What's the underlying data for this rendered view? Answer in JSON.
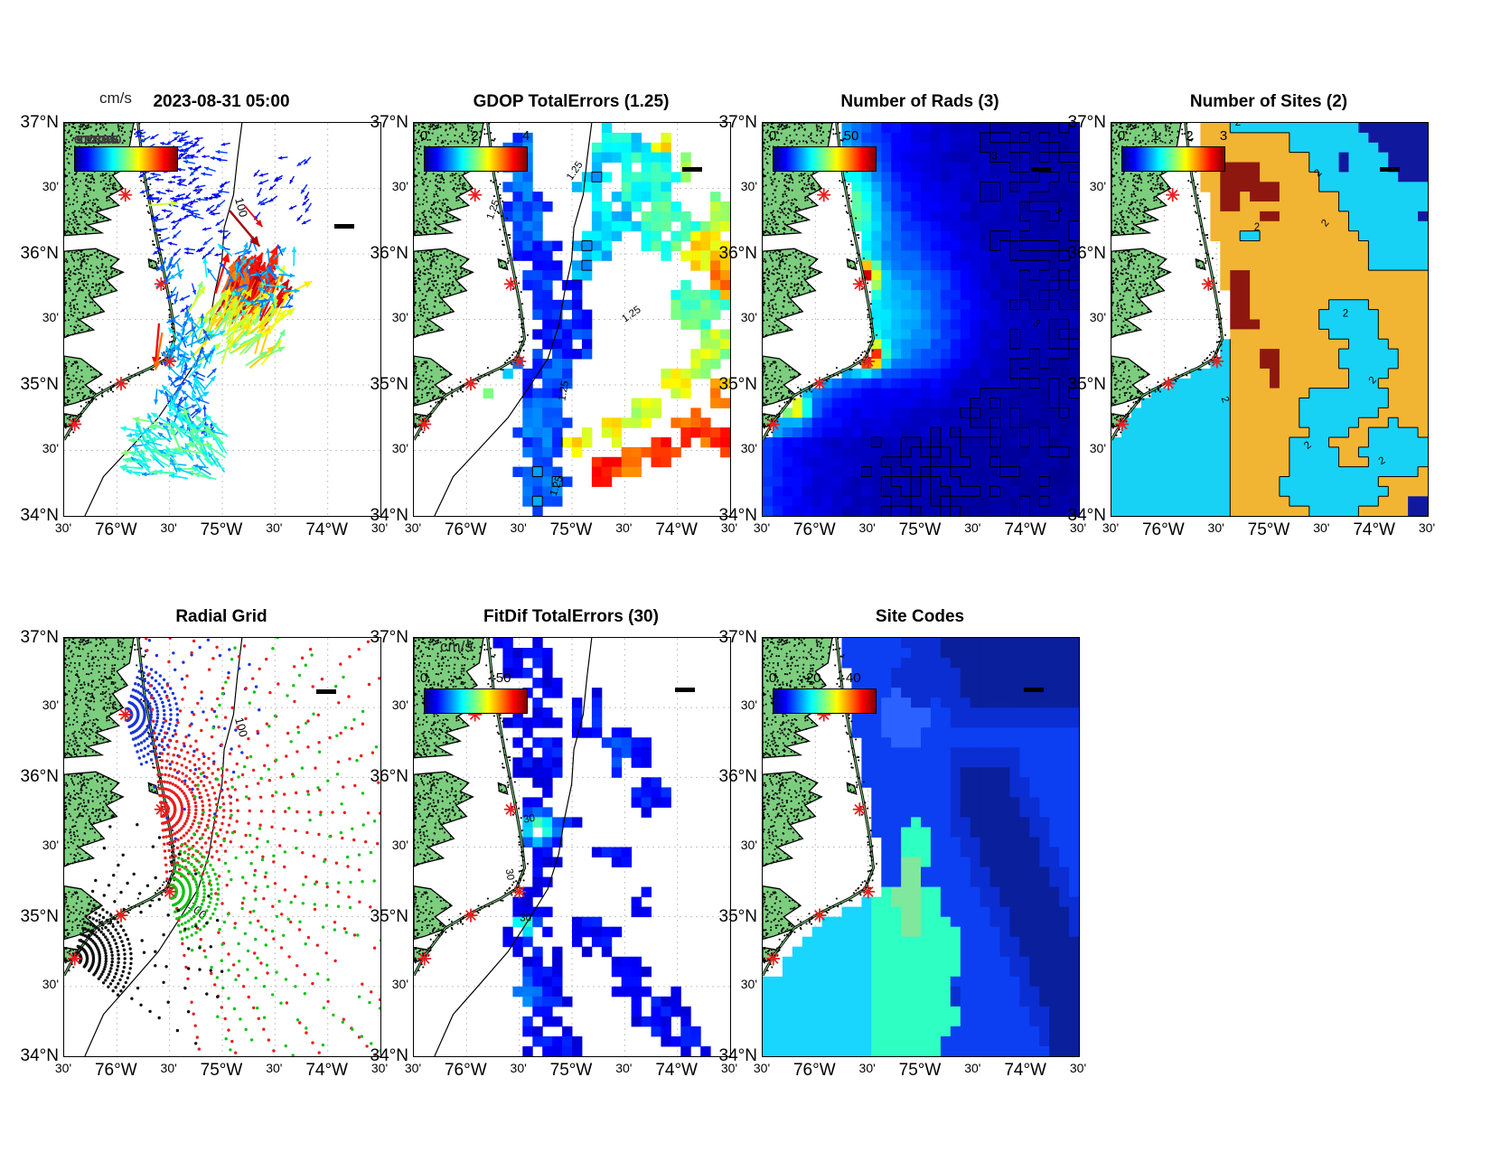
{
  "figure": {
    "background": "#FFFFFF"
  },
  "geo": {
    "lon_west": 76.5,
    "lon_east": 73.5,
    "lat_south": 34,
    "lat_north": 37,
    "x_tick_labels": [
      "30'",
      "76°W",
      "30'",
      "75°W",
      "30'",
      "74°W",
      "30'"
    ],
    "y_tick_labels": [
      "37°N",
      "30'",
      "36°N",
      "30'",
      "35°N",
      "30'",
      "34°N"
    ]
  },
  "basemap": {
    "land_color": "#7CCE7E",
    "coast_color": "#000000",
    "graticule_color": "#C4C4C4",
    "site_marker_color": "#E62020",
    "bathy_contour_label": "100",
    "sites_lon_lat": [
      [
        75.92,
        36.45
      ],
      [
        75.58,
        35.77
      ],
      [
        75.5,
        35.18
      ],
      [
        75.96,
        35.01
      ],
      [
        76.4,
        34.7
      ]
    ]
  },
  "panels": [
    {
      "title": "2023-08-31 05:00",
      "unit": "cm/s",
      "scale_speed": "50 cm/s",
      "scale_dist": "10 km",
      "colorbar": {
        "garbled_text": "0 5 10 15 20 25 30 35 40 45 50",
        "ticks": [],
        "positions": []
      }
    },
    {
      "title": "GDOP TotalErrors (1.25)",
      "scale_dist": "10 km",
      "colorbar": {
        "ticks": [
          "0",
          "2",
          "4"
        ],
        "positions": [
          0,
          0.5,
          1
        ]
      }
    },
    {
      "title": "Number of Rads (3)",
      "scale_dist": "10 km",
      "colorbar": {
        "ticks": [
          "0",
          "50"
        ],
        "positions": [
          0,
          0.77
        ]
      }
    },
    {
      "title": "Number of Sites (2)",
      "scale_dist": "10 km",
      "colorbar": {
        "ticks": [
          "0",
          "1",
          "2",
          "3"
        ],
        "positions": [
          0,
          0.333,
          0.667,
          1
        ]
      }
    },
    {
      "title": "Radial Grid",
      "scale_dist": "10 km"
    },
    {
      "title": "FitDif TotalErrors (30)",
      "unit": "cm/s",
      "scale_dist": "10 km",
      "colorbar": {
        "ticks": [
          "0",
          "50"
        ],
        "positions": [
          0,
          0.78
        ]
      }
    },
    {
      "title": "Site Codes",
      "scale_dist": "10 km",
      "colorbar": {
        "ticks": [
          "0",
          "20",
          "40"
        ],
        "positions": [
          0,
          0.4,
          0.79
        ]
      }
    }
  ],
  "chart_data": [
    {
      "id": "surface_currents",
      "type": "map-vector-field",
      "title": "2023-08-31 05:00",
      "units": "cm/s",
      "colorbar_range": [
        0,
        50
      ],
      "scale_arrow": "50 cm/s",
      "scale_bar": "10 km",
      "bathy_labels": [
        [
          74.88,
          36.42,
          75
        ]
      ],
      "clusters": [
        {
          "kind": "box",
          "lon": [
            75.88,
            74.92
          ],
          "lat": [
            36.0,
            36.95
          ],
          "n": 170,
          "speed": [
            4,
            10
          ],
          "bearing": [
            255,
            35
          ]
        },
        {
          "kind": "box",
          "lon": [
            74.65,
            74.15
          ],
          "lat": [
            36.25,
            36.8
          ],
          "n": 22,
          "speed": [
            4,
            9
          ],
          "bearing": [
            235,
            40
          ]
        },
        {
          "kind": "box",
          "lon": [
            75.62,
            75.25
          ],
          "lat": [
            35.5,
            35.98
          ],
          "n": 28,
          "speed": [
            8,
            16
          ],
          "bearing": [
            205,
            45
          ]
        },
        {
          "kind": "gauss",
          "c": [
            74.83,
            35.58
          ],
          "s": [
            0.17,
            0.13
          ],
          "n": 85,
          "speed": [
            37,
            50
          ],
          "bearing": [
            25,
            12
          ]
        },
        {
          "kind": "gauss",
          "c": [
            74.87,
            35.42
          ],
          "s": [
            0.3,
            0.22
          ],
          "n": 70,
          "speed": [
            23,
            35
          ],
          "bearing": [
            38,
            28
          ]
        },
        {
          "kind": "gauss",
          "c": [
            74.72,
            35.78
          ],
          "s": [
            0.3,
            0.2
          ],
          "n": 45,
          "speed": [
            10,
            19
          ],
          "bearing": [
            20,
            80
          ]
        },
        {
          "kind": "box",
          "lon": [
            75.52,
            75.12
          ],
          "lat": [
            34.55,
            35.45
          ],
          "n": 115,
          "speed": [
            9,
            20
          ],
          "bearing": [
            0,
            70
          ]
        },
        {
          "kind": "box",
          "lon": [
            75.78,
            74.95
          ],
          "lat": [
            34.28,
            34.72
          ],
          "n": 95,
          "speed": [
            13,
            27
          ],
          "bearing": [
            300,
            40
          ]
        },
        {
          "kind": "single",
          "c": [
            74.93,
            36.33
          ],
          "speed": 50,
          "bearing": 140
        },
        {
          "kind": "single",
          "c": [
            75.7,
            36.37
          ],
          "speed": 30,
          "bearing": 85
        },
        {
          "kind": "single",
          "c": [
            75.6,
            35.47
          ],
          "speed": 46,
          "bearing": 185
        },
        {
          "kind": "single",
          "c": [
            75.57,
            35.4
          ],
          "speed": 40,
          "bearing": 190
        },
        {
          "kind": "single",
          "c": [
            75.62,
            34.97
          ],
          "speed": 14,
          "bearing": 185
        }
      ]
    },
    {
      "id": "gdop_total_errors",
      "type": "map-heatmap",
      "title": "GDOP TotalErrors (1.25)",
      "colorbar_range": [
        0,
        4
      ],
      "color_scale_max": 4.6,
      "contour_level": 1.25,
      "contour_label": "1.25",
      "contour_label_pos": [
        [
          75.72,
          36.33,
          -70
        ],
        [
          74.95,
          36.62,
          -55
        ],
        [
          74.42,
          35.52,
          -35
        ],
        [
          75.05,
          34.95,
          -80
        ],
        [
          75.12,
          34.22,
          -70
        ]
      ],
      "blobs": [
        [
          75.5,
          36.68,
          0.2,
          0.33,
          1.0
        ],
        [
          75.42,
          36.28,
          0.2,
          0.3,
          0.95
        ],
        [
          75.32,
          35.92,
          0.24,
          0.3,
          0.85
        ],
        [
          75.12,
          35.6,
          0.3,
          0.34,
          0.72
        ],
        [
          75.05,
          35.35,
          0.28,
          0.3,
          0.78
        ],
        [
          75.22,
          35.08,
          0.26,
          0.33,
          0.9
        ],
        [
          75.3,
          34.68,
          0.26,
          0.33,
          1.0
        ],
        [
          75.28,
          34.22,
          0.3,
          0.28,
          1.1
        ],
        [
          75.6,
          35.18,
          0.1,
          0.14,
          1.35
        ],
        [
          75.84,
          34.97,
          0.08,
          0.06,
          2.3
        ],
        [
          74.6,
          36.82,
          0.28,
          0.16,
          1.7
        ],
        [
          74.32,
          36.55,
          0.33,
          0.28,
          1.85
        ],
        [
          74.1,
          36.22,
          0.28,
          0.28,
          2.05
        ],
        [
          74.6,
          36.32,
          0.24,
          0.22,
          1.6
        ],
        [
          74.78,
          36.55,
          0.18,
          0.16,
          1.5
        ],
        [
          74.12,
          36.85,
          0.13,
          0.1,
          2.9
        ],
        [
          73.95,
          36.68,
          0.1,
          0.1,
          2.6
        ],
        [
          73.7,
          36.02,
          0.26,
          0.2,
          3.0
        ],
        [
          73.57,
          35.85,
          0.18,
          0.18,
          3.4
        ],
        [
          73.62,
          36.28,
          0.18,
          0.16,
          2.5
        ],
        [
          73.82,
          35.58,
          0.28,
          0.22,
          2.1
        ],
        [
          73.62,
          35.32,
          0.22,
          0.18,
          2.5
        ],
        [
          74.78,
          36.08,
          0.18,
          0.15,
          1.5
        ],
        [
          74.9,
          35.85,
          0.13,
          0.12,
          1.35
        ],
        [
          74.68,
          34.34,
          0.2,
          0.13,
          3.8
        ],
        [
          74.44,
          34.4,
          0.18,
          0.12,
          3.5
        ],
        [
          74.14,
          34.48,
          0.2,
          0.13,
          3.9
        ],
        [
          73.85,
          34.66,
          0.18,
          0.15,
          3.7
        ],
        [
          73.6,
          34.92,
          0.16,
          0.17,
          3.4
        ],
        [
          73.55,
          34.58,
          0.13,
          0.13,
          3.9
        ],
        [
          74.9,
          34.58,
          0.16,
          0.12,
          3.0
        ],
        [
          74.62,
          34.66,
          0.18,
          0.13,
          2.9
        ],
        [
          74.3,
          34.8,
          0.18,
          0.13,
          2.7
        ],
        [
          74.0,
          35.0,
          0.16,
          0.15,
          2.8
        ],
        [
          73.76,
          35.16,
          0.13,
          0.15,
          2.6
        ]
      ]
    },
    {
      "id": "number_of_rads",
      "type": "map-heatmap",
      "title": "Number of Rads (3)",
      "colorbar_range": [
        0,
        50
      ],
      "color_scale_max": 65,
      "contour_level": 3,
      "contour_label": "3",
      "contour_label_pos": [
        [
          74.3,
          36.72,
          0
        ],
        [
          73.72,
          36.32,
          60
        ],
        [
          73.92,
          35.45,
          40
        ]
      ],
      "base": {
        "floor": 2.2,
        "coastal_amp": 17,
        "decay_deg": 0.5
      },
      "bumps": [
        [
          75.55,
          35.82,
          0.13,
          0.11,
          47
        ],
        [
          75.5,
          35.22,
          0.13,
          0.1,
          47
        ],
        [
          76.18,
          34.82,
          0.12,
          0.09,
          26
        ],
        [
          75.6,
          36.35,
          0.25,
          0.3,
          12
        ],
        [
          75.05,
          35.55,
          0.5,
          0.6,
          8
        ]
      ]
    },
    {
      "id": "number_of_sites",
      "type": "map-categorical",
      "title": "Number of Sites (2)",
      "colorbar_range": [
        0,
        3
      ],
      "contour_label": "2",
      "contour_label_pos": [
        [
          75.12,
          36.18,
          0
        ],
        [
          74.52,
          36.6,
          -45
        ],
        [
          74.28,
          35.52,
          0
        ],
        [
          74.0,
          35.02,
          -50
        ],
        [
          74.62,
          34.52,
          -40
        ],
        [
          73.92,
          34.4,
          -30
        ],
        [
          75.45,
          34.88,
          70
        ],
        [
          74.45,
          36.22,
          -50
        ],
        [
          75.3,
          36.98,
          0
        ]
      ],
      "category_colors": {
        "0": "#10189E",
        "1": "#17D2F5",
        "2": "#F2B433",
        "3": "#8E1710"
      },
      "cyan_blobs": [
        [
          74.25,
          35.5,
          0.24,
          0.18
        ],
        [
          74.05,
          35.2,
          0.26,
          0.2
        ],
        [
          74.45,
          34.8,
          0.3,
          0.2
        ],
        [
          74.1,
          34.9,
          0.2,
          0.16
        ],
        [
          73.82,
          34.5,
          0.3,
          0.22
        ],
        [
          74.6,
          34.45,
          0.26,
          0.16
        ],
        [
          74.4,
          34.2,
          0.5,
          0.18
        ],
        [
          75.15,
          36.14,
          0.09,
          0.07
        ],
        [
          75.15,
          36.97,
          0.25,
          0.08
        ]
      ],
      "red_blobs": [
        [
          75.28,
          36.58,
          0.2,
          0.14
        ],
        [
          75.05,
          36.47,
          0.12,
          0.1
        ],
        [
          75.38,
          36.42,
          0.1,
          0.07
        ],
        [
          75.0,
          36.28,
          0.07,
          0.06
        ],
        [
          75.28,
          35.82,
          0.1,
          0.1
        ],
        [
          75.32,
          35.6,
          0.12,
          0.15
        ],
        [
          75.2,
          35.46,
          0.08,
          0.08
        ],
        [
          75.0,
          35.18,
          0.07,
          0.1
        ],
        [
          74.92,
          35.04,
          0.06,
          0.06
        ],
        [
          75.47,
          36.17,
          0.05,
          0.05
        ]
      ],
      "navy_squares": [
        [
          74.3,
          36.7,
          0.05
        ],
        [
          73.58,
          36.28,
          0.06
        ],
        [
          74.72,
          36.6,
          0.04
        ]
      ]
    },
    {
      "id": "radial_grid",
      "type": "map-radial-grid",
      "title": "Radial Grid",
      "bathy_labels": [
        [
          74.88,
          36.42,
          75
        ],
        [
          75.33,
          35.07,
          40
        ]
      ],
      "radial_sites": [
        {
          "color": "#1834DC",
          "c": [
            75.92,
            36.45
          ],
          "sector": [
            18,
            162
          ],
          "near": [
            0.045,
            0.42,
            0.047,
            6
          ],
          "far": [
            0.48,
            1.0,
            0.08,
            10,
            0.55
          ]
        },
        {
          "color": "#E81E1E",
          "c": [
            75.58,
            35.77
          ],
          "sector": [
            -5,
            178
          ],
          "near": [
            0.05,
            0.5,
            0.05,
            6
          ],
          "far": [
            0.55,
            2.75,
            0.085,
            8,
            0.8
          ]
        },
        {
          "color": "#12C212",
          "c": [
            75.5,
            35.18
          ],
          "sector": [
            15,
            165
          ],
          "near": [
            0.05,
            0.38,
            0.05,
            6
          ],
          "far": [
            0.45,
            2.05,
            0.085,
            8,
            0.65
          ]
        },
        {
          "color": "#101010",
          "c": [
            76.4,
            34.7
          ],
          "sector": [
            15,
            132
          ],
          "near": [
            0.045,
            0.42,
            0.045,
            5
          ],
          "far": [
            0.5,
            1.1,
            0.08,
            10,
            0.6
          ]
        }
      ]
    },
    {
      "id": "fitdif_total_errors",
      "type": "map-heatmap",
      "title": "FitDif TotalErrors (30)",
      "units": "cm/s",
      "colorbar_range": [
        0,
        50
      ],
      "color_scale_max": 65,
      "contour_level": 30,
      "contour_label": "30",
      "contour_label_pos": [
        [
          75.4,
          35.68,
          -10
        ],
        [
          75.62,
          35.3,
          80
        ],
        [
          75.44,
          34.97,
          0
        ]
      ],
      "coverage": [
        [
          75.45,
          36.88,
          0.3,
          0.25
        ],
        [
          75.35,
          36.5,
          0.32,
          0.28
        ],
        [
          75.3,
          36.1,
          0.28,
          0.28
        ],
        [
          75.25,
          35.7,
          0.32,
          0.3
        ],
        [
          75.35,
          35.3,
          0.28,
          0.28
        ],
        [
          75.42,
          34.9,
          0.28,
          0.28
        ],
        [
          75.3,
          34.5,
          0.32,
          0.3
        ],
        [
          75.2,
          34.12,
          0.3,
          0.22
        ],
        [
          74.85,
          36.45,
          0.24,
          0.2
        ],
        [
          74.5,
          36.18,
          0.24,
          0.2
        ],
        [
          74.25,
          35.88,
          0.22,
          0.2
        ],
        [
          74.6,
          35.4,
          0.2,
          0.16
        ],
        [
          74.35,
          35.12,
          0.2,
          0.16
        ],
        [
          74.8,
          34.85,
          0.25,
          0.2
        ],
        [
          74.5,
          34.55,
          0.26,
          0.2
        ],
        [
          74.15,
          34.3,
          0.26,
          0.2
        ],
        [
          73.9,
          34.1,
          0.2,
          0.15
        ]
      ],
      "holes": [
        [
          75.05,
          35.88,
          0.15,
          0.12
        ],
        [
          74.78,
          35.2,
          0.3,
          0.22
        ],
        [
          74.95,
          34.62,
          0.17,
          0.14
        ],
        [
          74.62,
          35.6,
          0.12,
          0.1
        ],
        [
          75.0,
          34.28,
          0.12,
          0.1
        ],
        [
          74.7,
          36.0,
          0.1,
          0.1
        ]
      ],
      "bumps": [
        [
          75.32,
          35.63,
          0.15,
          0.1,
          26
        ],
        [
          75.56,
          35.27,
          0.08,
          0.07,
          30
        ],
        [
          75.46,
          34.94,
          0.09,
          0.06,
          27
        ],
        [
          75.5,
          34.42,
          0.2,
          0.15,
          11
        ],
        [
          74.6,
          36.1,
          0.3,
          0.3,
          5
        ]
      ]
    },
    {
      "id": "site_codes",
      "type": "map-categorical",
      "title": "Site Codes",
      "colorbar_range": [
        0,
        40
      ],
      "region_colors": {
        "royal": "#0C3FF2",
        "medium": "#0A2ED2",
        "navy": "#0A1F9C",
        "lighter": "#2B62FF",
        "cyan": "#18D6FF",
        "green": "#2EFFC2",
        "lightgreen": "#7FE89C",
        "darkred": "#8E120C"
      }
    }
  ]
}
